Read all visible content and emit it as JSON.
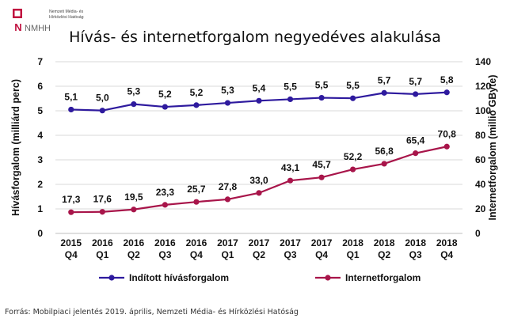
{
  "logo": {
    "mark": "NMHH",
    "line1": "Nemzeti Média- és",
    "line2": "Hírközlési Hatóság"
  },
  "colors": {
    "calls": "#2e1a9e",
    "internet": "#a8154a",
    "grid": "#d9d9d9"
  },
  "source": "Forrás: Mobilpiaci jelentés 2019. április, Nemzeti Média- és Hírközlési Hatóság",
  "chart_data": {
    "type": "line",
    "title": "Hívás- és internetforgalom negyedéves alakulása",
    "categories": [
      [
        "2015",
        "Q4"
      ],
      [
        "2016",
        "Q1"
      ],
      [
        "2016",
        "Q2"
      ],
      [
        "2016",
        "Q3"
      ],
      [
        "2016",
        "Q4"
      ],
      [
        "2017",
        "Q1"
      ],
      [
        "2017",
        "Q2"
      ],
      [
        "2017",
        "Q3"
      ],
      [
        "2017",
        "Q4"
      ],
      [
        "2018",
        "Q1"
      ],
      [
        "2018",
        "Q2"
      ],
      [
        "2018",
        "Q3"
      ],
      [
        "2018",
        "Q4"
      ]
    ],
    "ylabel_left": "Hívásforgalom (milliárd perc)",
    "ylabel_right": "Internetforgalom (millió GByte)",
    "ylim_left": [
      0,
      7
    ],
    "yticks_left": [
      "0",
      "1",
      "2",
      "3",
      "4",
      "5",
      "6",
      "7"
    ],
    "ylim_right": [
      0,
      140
    ],
    "yticks_right": [
      "0",
      "20",
      "40",
      "60",
      "80",
      "100",
      "120",
      "140"
    ],
    "grid": true,
    "legend_position": "bottom",
    "series": [
      {
        "name": "Indított hívásforgalom",
        "axis": "left",
        "values": [
          5.1,
          5.0,
          5.3,
          5.2,
          5.2,
          5.3,
          5.4,
          5.5,
          5.5,
          5.5,
          5.7,
          5.7,
          5.8
        ],
        "plot_values": [
          5.05,
          5.01,
          5.27,
          5.16,
          5.23,
          5.32,
          5.41,
          5.47,
          5.53,
          5.51,
          5.73,
          5.68,
          5.75
        ],
        "labels": [
          "5,1",
          "5,0",
          "5,3",
          "5,2",
          "5,2",
          "5,3",
          "5,4",
          "5,5",
          "5,5",
          "5,5",
          "5,7",
          "5,7",
          "5,8"
        ]
      },
      {
        "name": "Internetforgalom",
        "axis": "right",
        "values": [
          17.3,
          17.6,
          19.5,
          23.3,
          25.7,
          27.8,
          33.0,
          43.1,
          45.7,
          52.2,
          56.8,
          65.4,
          70.8
        ],
        "labels": [
          "17,3",
          "17,6",
          "19,5",
          "23,3",
          "25,7",
          "27,8",
          "33,0",
          "43,1",
          "45,7",
          "52,2",
          "56,8",
          "65,4",
          "70,8"
        ]
      }
    ]
  }
}
